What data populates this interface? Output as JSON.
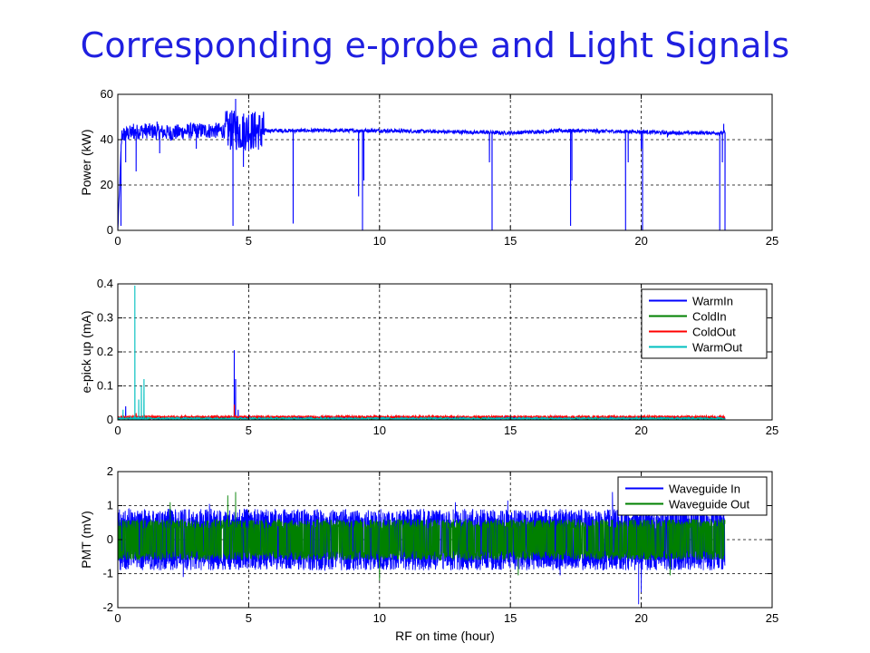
{
  "slide": {
    "title": "Corresponding e-probe and Light Signals"
  },
  "colors": {
    "title": "#1f1fe0",
    "blue": "#0000ff",
    "green": "#008000",
    "red": "#ff0000",
    "cyan": "#00bfbf",
    "grid": "#000000"
  },
  "chart_data": [
    {
      "type": "line",
      "title": "",
      "xlabel": "",
      "ylabel": "Power (kW)",
      "xlim": [
        0,
        25
      ],
      "ylim": [
        0,
        60
      ],
      "xticks": [
        0,
        5,
        10,
        15,
        20,
        25
      ],
      "yticks": [
        0,
        20,
        40,
        60
      ],
      "xtick_labels": [
        "0",
        "5",
        "10",
        "15",
        "20",
        "25"
      ],
      "ytick_labels": [
        "0",
        "20",
        "40",
        "60"
      ],
      "grid": true,
      "legend": null,
      "series": [
        {
          "color": "#0000ff",
          "x_end": 23.2,
          "baseline": [
            [
              0,
              0
            ],
            [
              0.15,
              42
            ],
            [
              0.5,
              43
            ],
            [
              1.0,
              44
            ],
            [
              2.0,
              43
            ],
            [
              3.0,
              44
            ],
            [
              4.0,
              44
            ],
            [
              4.5,
              44
            ],
            [
              5.0,
              44
            ],
            [
              5.5,
              44
            ],
            [
              10,
              44
            ],
            [
              15,
              43
            ],
            [
              17,
              44
            ],
            [
              20,
              43.5
            ],
            [
              21,
              43
            ],
            [
              23,
              43
            ],
            [
              23.2,
              43
            ]
          ],
          "noise_segments": [
            [
              0.1,
              4.1,
              3.5
            ],
            [
              4.1,
              5.6,
              9
            ],
            [
              5.6,
              23.2,
              0.8
            ]
          ],
          "dips": [
            [
              0.12,
              2
            ],
            [
              0.3,
              30
            ],
            [
              0.7,
              26
            ],
            [
              1.6,
              34
            ],
            [
              3.0,
              36
            ],
            [
              4.4,
              2
            ],
            [
              4.8,
              28
            ],
            [
              5.5,
              37
            ],
            [
              6.7,
              3
            ],
            [
              9.2,
              15
            ],
            [
              9.35,
              0
            ],
            [
              9.4,
              22
            ],
            [
              14.2,
              30
            ],
            [
              14.3,
              0
            ],
            [
              17.3,
              2
            ],
            [
              17.35,
              22
            ],
            [
              19.4,
              0
            ],
            [
              19.5,
              30
            ],
            [
              20.0,
              36
            ],
            [
              20.05,
              0
            ],
            [
              21.0,
              41
            ],
            [
              23.0,
              0
            ],
            [
              23.1,
              30
            ],
            [
              23.2,
              0
            ]
          ],
          "spikes": [
            [
              4.5,
              58
            ],
            [
              4.3,
              52
            ],
            [
              5.0,
              51
            ],
            [
              1.5,
              48
            ],
            [
              0.6,
              47
            ],
            [
              23.15,
              47
            ]
          ]
        }
      ]
    },
    {
      "type": "line",
      "title": "",
      "xlabel": "",
      "ylabel": "e-pick up (mA)",
      "xlim": [
        0,
        25
      ],
      "ylim": [
        0,
        0.4
      ],
      "xticks": [
        0,
        5,
        10,
        15,
        20,
        25
      ],
      "yticks": [
        0,
        0.1,
        0.2,
        0.3,
        0.4
      ],
      "xtick_labels": [
        "0",
        "5",
        "10",
        "15",
        "20",
        "25"
      ],
      "ytick_labels": [
        "0",
        "0.1",
        "0.2",
        "0.3",
        "0.4"
      ],
      "grid": true,
      "legend": {
        "placement": "top-right"
      },
      "series": [
        {
          "name": "WarmIn",
          "color": "#0000ff",
          "x_end": 23.2,
          "level": 0.005,
          "noise": 0.004,
          "spikes": [
            [
              0.3,
              0.04
            ],
            [
              4.45,
              0.205
            ],
            [
              4.5,
              0.12
            ],
            [
              4.6,
              0.03
            ]
          ]
        },
        {
          "name": "ColdIn",
          "color": "#008000",
          "x_end": 23.2,
          "level": 0.004,
          "noise": 0.002,
          "spikes": []
        },
        {
          "name": "ColdOut",
          "color": "#ff0000",
          "x_end": 23.2,
          "level": 0.009,
          "noise": 0.003,
          "spikes": [
            [
              4.45,
              0.045
            ],
            [
              0.7,
              0.02
            ]
          ]
        },
        {
          "name": "WarmOut",
          "color": "#00bfbf",
          "x_end": 23.2,
          "level": 0.004,
          "noise": 0.003,
          "spikes": [
            [
              0.65,
              0.395
            ],
            [
              0.8,
              0.06
            ],
            [
              0.9,
              0.1
            ],
            [
              1.0,
              0.12
            ],
            [
              0.2,
              0.03
            ]
          ]
        }
      ]
    },
    {
      "type": "line",
      "title": "",
      "xlabel": "RF on time (hour)",
      "ylabel": "PMT (mV)",
      "xlim": [
        0,
        25
      ],
      "ylim": [
        -2,
        2
      ],
      "xticks": [
        0,
        5,
        10,
        15,
        20,
        25
      ],
      "yticks": [
        -2,
        -1,
        0,
        1,
        2
      ],
      "xtick_labels": [
        "0",
        "5",
        "10",
        "15",
        "20",
        "25"
      ],
      "ytick_labels": [
        "-2",
        "-1",
        "0",
        "1",
        "2"
      ],
      "grid": true,
      "legend": {
        "placement": "top-right"
      },
      "series": [
        {
          "name": "Waveguide In",
          "color": "#0000ff",
          "x_end": 23.2,
          "band": [
            -0.9,
            0.9
          ],
          "spikes": [
            [
              19.9,
              -1.9
            ],
            [
              18.9,
              1.4
            ],
            [
              16.9,
              -1.05
            ],
            [
              3.5,
              1.05
            ],
            [
              14.9,
              1.15
            ],
            [
              12.9,
              1.1
            ],
            [
              20.0,
              -1.55
            ],
            [
              2.5,
              -1.1
            ]
          ]
        },
        {
          "name": "Waveguide Out",
          "color": "#008000",
          "x_end": 23.2,
          "band": [
            -0.6,
            0.6
          ],
          "spikes": [
            [
              4.5,
              1.4
            ],
            [
              4.2,
              1.3
            ],
            [
              10.0,
              -1.2
            ],
            [
              15.3,
              -1.05
            ],
            [
              21.1,
              -1.05
            ],
            [
              2.0,
              1.1
            ]
          ]
        }
      ]
    }
  ]
}
